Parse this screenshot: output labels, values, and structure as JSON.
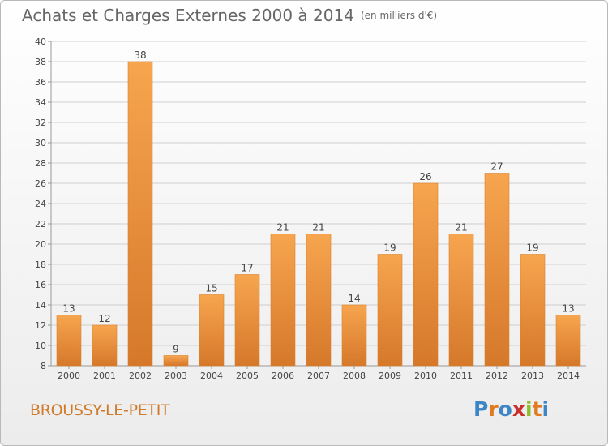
{
  "header": {
    "title": "Achats et Charges Externes 2000 à 2014",
    "unit": "(en milliers d'€)"
  },
  "commune": "BROUSSY-LE-PETIT",
  "logo": {
    "letters": [
      "P",
      "r",
      "o",
      "x",
      "i",
      "t",
      "i"
    ],
    "colors": [
      "#3d86c6",
      "#e07b22",
      "#3d86c6",
      "#c9302c",
      "#8cbd2a",
      "#e07b22",
      "#3d86c6"
    ]
  },
  "colors": {
    "bar": "#f3a04c",
    "bar_dark": "#d9822e",
    "grid": "#cfcfcf",
    "text": "#444444"
  },
  "chart_data": {
    "type": "bar",
    "categories": [
      "2000",
      "2001",
      "2002",
      "2003",
      "2004",
      "2005",
      "2006",
      "2007",
      "2008",
      "2009",
      "2010",
      "2011",
      "2012",
      "2013",
      "2014"
    ],
    "values": [
      13,
      12,
      38,
      9,
      15,
      17,
      21,
      21,
      14,
      19,
      26,
      21,
      27,
      19,
      13
    ],
    "title": "Achats et Charges Externes 2000 à 2014",
    "xlabel": "",
    "ylabel": "",
    "ylim": [
      8,
      40
    ],
    "yticks": [
      8,
      10,
      12,
      14,
      16,
      18,
      20,
      22,
      24,
      26,
      28,
      30,
      32,
      34,
      36,
      38,
      40
    ],
    "grid": true,
    "data_labels": true
  }
}
